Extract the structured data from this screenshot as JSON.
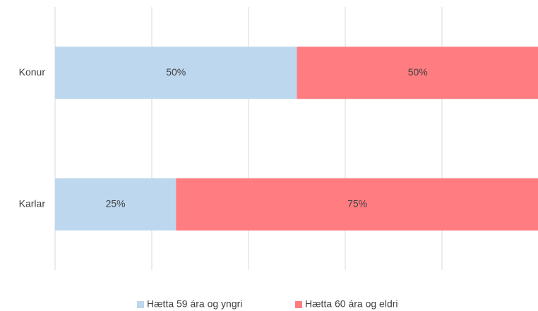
{
  "chart_data": {
    "type": "stacked_barh",
    "categories": [
      "Konur",
      "Karlar"
    ],
    "series": [
      {
        "name": "Hætta 59 ára og yngri",
        "color": "#bdd7ee",
        "values": [
          50,
          25
        ],
        "value_labels": [
          "50%",
          "25%"
        ]
      },
      {
        "name": "Hætta 60 ára og eldri",
        "color": "#ff7c80",
        "values": [
          50,
          75
        ],
        "value_labels": [
          "50%",
          "75%"
        ]
      }
    ],
    "xlim": [
      0,
      100
    ],
    "xticks": [
      0,
      20,
      40,
      60,
      80,
      100
    ],
    "grid": true,
    "legend": "bottom"
  }
}
